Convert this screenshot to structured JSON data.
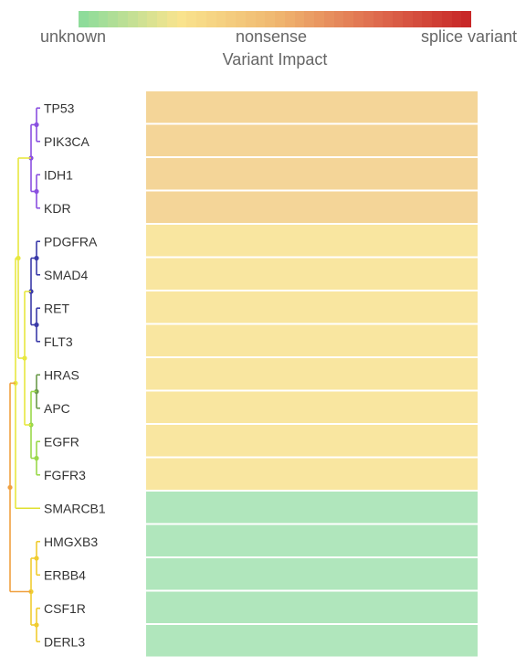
{
  "legend": {
    "min_label": "unknown",
    "mid_label": "nonsense",
    "max_label": "splice variant",
    "title": "Variant Impact",
    "colors": [
      "#8edc9a",
      "#f9e48e",
      "#f0b870",
      "#e07050",
      "#c82828"
    ]
  },
  "chart_data": {
    "type": "heatmap",
    "title": "",
    "color_legend_title": "Variant Impact",
    "color_scale_labels": [
      "unknown",
      "nonsense",
      "splice variant"
    ],
    "rows": [
      "TP53",
      "PIK3CA",
      "IDH1",
      "KDR",
      "PDGFRA",
      "SMAD4",
      "RET",
      "FLT3",
      "HRAS",
      "APC",
      "EGFR",
      "FGFR3",
      "SMARCB1",
      "HMGXB3",
      "ERBB4",
      "CSF1R",
      "DERL3"
    ],
    "columns": [
      ""
    ],
    "cell_colors": [
      "#f4d598",
      "#f4d598",
      "#f4d598",
      "#f4d598",
      "#f9e6a0",
      "#f9e6a0",
      "#f9e6a0",
      "#f9e6a0",
      "#f9e6a0",
      "#f9e6a0",
      "#f9e6a0",
      "#f9e6a0",
      "#b0e6bc",
      "#b0e6bc",
      "#b0e6bc",
      "#b0e6bc",
      "#b0e6bc"
    ],
    "dendrogram": {
      "side": "left",
      "clusters": [
        {
          "members": [
            "TP53",
            "PIK3CA",
            "IDH1",
            "KDR"
          ],
          "color": "#8a4fe0"
        },
        {
          "members": [
            "PDGFRA",
            "SMAD4",
            "RET",
            "FLT3"
          ],
          "color": "#3a3aa8"
        },
        {
          "members": [
            "HRAS",
            "APC"
          ],
          "color": "#6a9a4a"
        },
        {
          "members": [
            "EGFR",
            "FGFR3"
          ],
          "color": "#9ad84a"
        },
        {
          "members": [
            "SMARCB1"
          ],
          "color": "#e0e030"
        },
        {
          "members": [
            "HMGXB3",
            "ERBB4",
            "CSF1R",
            "DERL3"
          ],
          "color": "#f0cc30"
        }
      ],
      "link_colors": {
        "upper_group": "#e8e840",
        "root": "#f0a040"
      }
    }
  }
}
